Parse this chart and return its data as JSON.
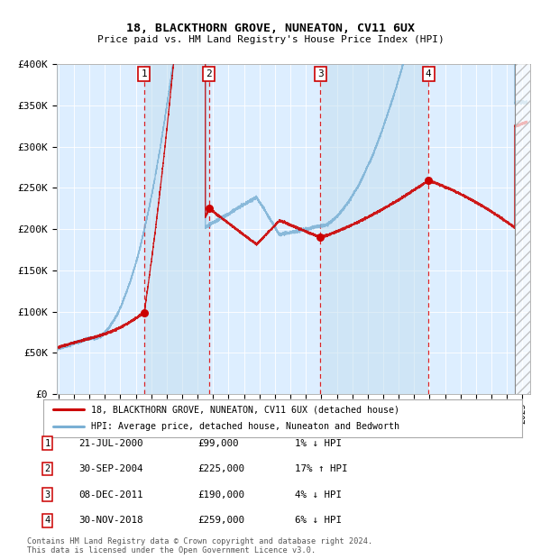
{
  "title1": "18, BLACKTHORN GROVE, NUNEATON, CV11 6UX",
  "title2": "Price paid vs. HM Land Registry's House Price Index (HPI)",
  "ylim": [
    0,
    400000
  ],
  "yticks": [
    0,
    50000,
    100000,
    150000,
    200000,
    250000,
    300000,
    350000,
    400000
  ],
  "ytick_labels": [
    "£0",
    "£50K",
    "£100K",
    "£150K",
    "£200K",
    "£250K",
    "£300K",
    "£350K",
    "£400K"
  ],
  "xlim_start": 1994.9,
  "xlim_end": 2025.5,
  "bg_color": "#ddeeff",
  "line_color_red": "#cc0000",
  "line_color_blue": "#7ab0d4",
  "sale_dates": [
    2000.55,
    2004.748,
    2011.935,
    2018.915
  ],
  "sale_prices": [
    99000,
    225000,
    190000,
    259000
  ],
  "sale_labels": [
    "1",
    "2",
    "3",
    "4"
  ],
  "transaction_info": [
    [
      "1",
      "21-JUL-2000",
      "£99,000",
      "1% ↓ HPI"
    ],
    [
      "2",
      "30-SEP-2004",
      "£225,000",
      "17% ↑ HPI"
    ],
    [
      "3",
      "08-DEC-2011",
      "£190,000",
      "4% ↓ HPI"
    ],
    [
      "4",
      "30-NOV-2018",
      "£259,000",
      "6% ↓ HPI"
    ]
  ],
  "legend_label_red": "18, BLACKTHORN GROVE, NUNEATON, CV11 6UX (detached house)",
  "legend_label_blue": "HPI: Average price, detached house, Nuneaton and Bedworth",
  "footnote": "Contains HM Land Registry data © Crown copyright and database right 2024.\nThis data is licensed under the Open Government Licence v3.0.",
  "hatch_region_start": 2024.5
}
